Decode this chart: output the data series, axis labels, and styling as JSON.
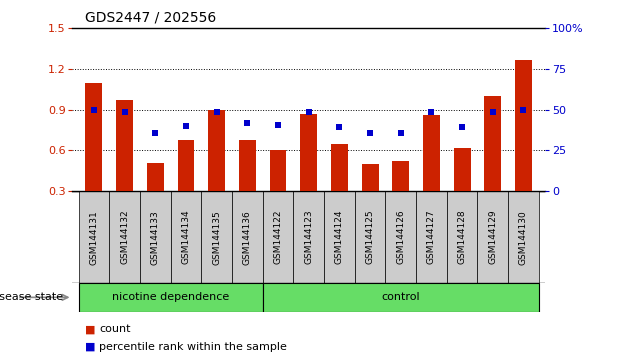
{
  "title": "GDS2447 / 202556",
  "samples": [
    "GSM144131",
    "GSM144132",
    "GSM144133",
    "GSM144134",
    "GSM144135",
    "GSM144136",
    "GSM144122",
    "GSM144123",
    "GSM144124",
    "GSM144125",
    "GSM144126",
    "GSM144127",
    "GSM144128",
    "GSM144129",
    "GSM144130"
  ],
  "bar_values": [
    1.1,
    0.97,
    0.51,
    0.68,
    0.9,
    0.68,
    0.6,
    0.87,
    0.65,
    0.5,
    0.52,
    0.86,
    0.62,
    1.0,
    1.27
  ],
  "dot_values": [
    0.9,
    0.88,
    0.73,
    0.78,
    0.88,
    0.8,
    0.79,
    0.88,
    0.77,
    0.73,
    0.73,
    0.88,
    0.77,
    0.88,
    0.895
  ],
  "bar_color": "#cc2200",
  "dot_color": "#0000cc",
  "left_ylim": [
    0.3,
    1.5
  ],
  "right_ylim": [
    0,
    100
  ],
  "left_yticks": [
    0.3,
    0.6,
    0.9,
    1.2,
    1.5
  ],
  "right_yticks": [
    0,
    25,
    50,
    75,
    100
  ],
  "right_yticklabels": [
    "0",
    "25",
    "50",
    "75",
    "100%"
  ],
  "group1_label": "nicotine dependence",
  "group2_label": "control",
  "group1_count": 6,
  "group2_count": 9,
  "factor_label": "disease state",
  "legend_count_label": "count",
  "legend_pct_label": "percentile rank within the sample",
  "bar_width": 0.55,
  "n_samples": 15,
  "gray_box_color": "#cccccc",
  "green_color": "#66dd66",
  "baseline": 0.3
}
